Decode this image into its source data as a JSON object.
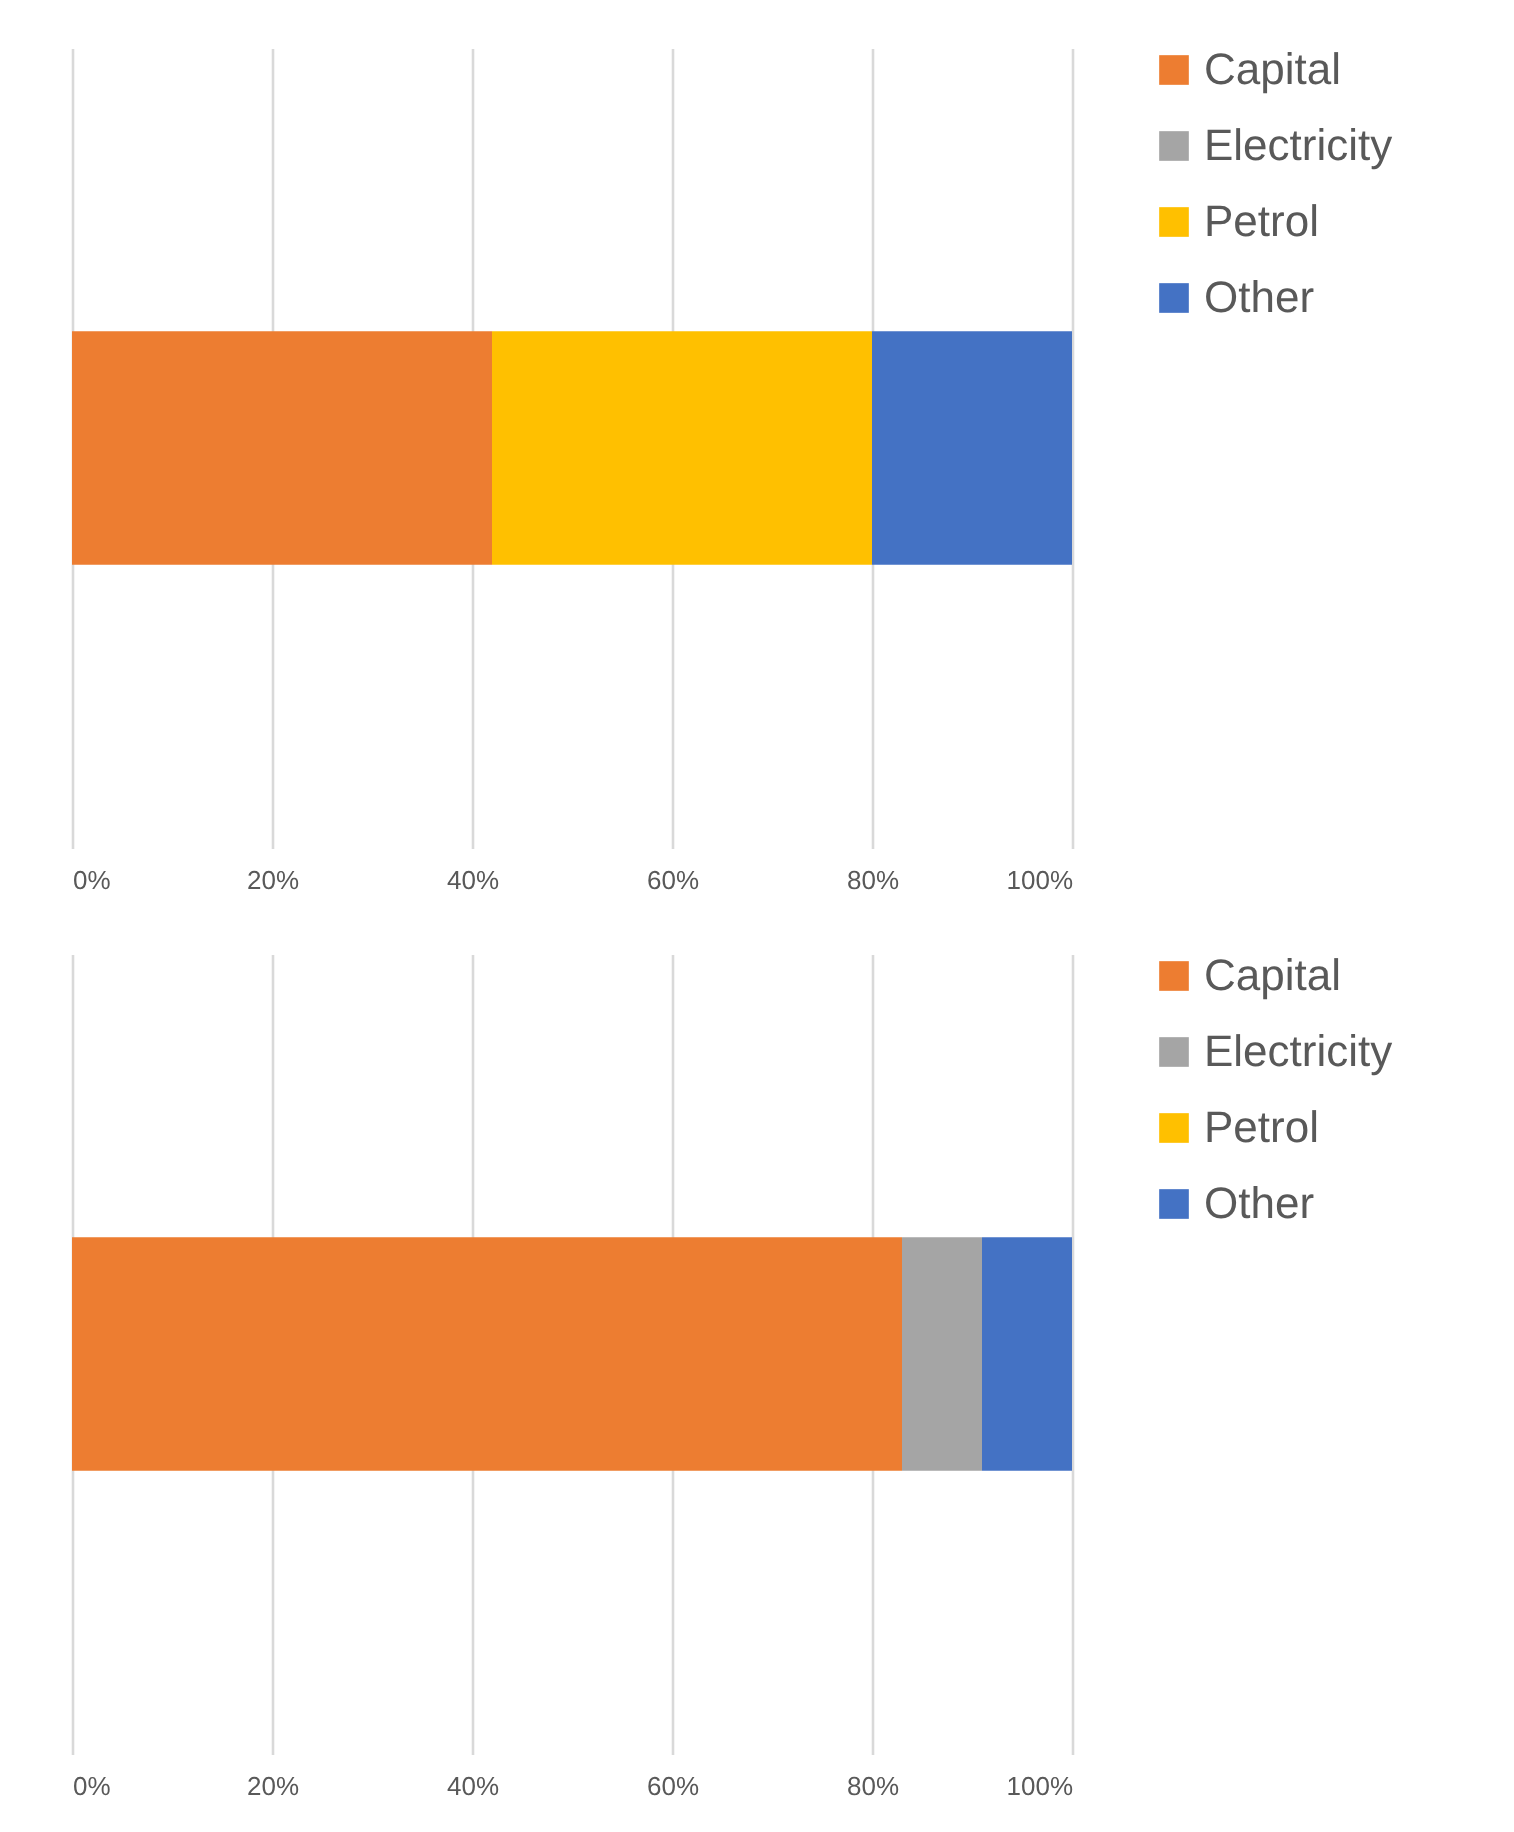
{
  "chart_data": [
    {
      "type": "bar",
      "orientation": "horizontal",
      "stacked": true,
      "categories": [
        null
      ],
      "series": [
        {
          "name": "Capital",
          "color": "#ed7d31",
          "values": [
            42
          ]
        },
        {
          "name": "Electricity",
          "color": "#a5a5a5",
          "values": [
            0
          ]
        },
        {
          "name": "Petrol",
          "color": "#ffc000",
          "values": [
            38
          ]
        },
        {
          "name": "Other",
          "color": "#4472c4",
          "values": [
            20
          ]
        }
      ],
      "xlim": [
        0,
        100
      ],
      "xticks": [
        {
          "value": 0,
          "label": "0%"
        },
        {
          "value": 20,
          "label": "20%"
        },
        {
          "value": 40,
          "label": "40%"
        },
        {
          "value": 60,
          "label": "60%"
        },
        {
          "value": 80,
          "label": "80%"
        },
        {
          "value": 100,
          "label": "100%"
        }
      ],
      "grid": "x",
      "legend": "right"
    },
    {
      "type": "bar",
      "orientation": "horizontal",
      "stacked": true,
      "categories": [
        null
      ],
      "series": [
        {
          "name": "Capital",
          "color": "#ed7d31",
          "values": [
            83
          ]
        },
        {
          "name": "Electricity",
          "color": "#a5a5a5",
          "values": [
            8
          ]
        },
        {
          "name": "Petrol",
          "color": "#ffc000",
          "values": [
            0
          ]
        },
        {
          "name": "Other",
          "color": "#4472c4",
          "values": [
            9
          ]
        }
      ],
      "xlim": [
        0,
        100
      ],
      "xticks": [
        {
          "value": 0,
          "label": "0%"
        },
        {
          "value": 20,
          "label": "20%"
        },
        {
          "value": 40,
          "label": "40%"
        },
        {
          "value": 60,
          "label": "60%"
        },
        {
          "value": 80,
          "label": "80%"
        },
        {
          "value": 100,
          "label": "100%"
        }
      ],
      "grid": "x",
      "legend": "right"
    }
  ]
}
